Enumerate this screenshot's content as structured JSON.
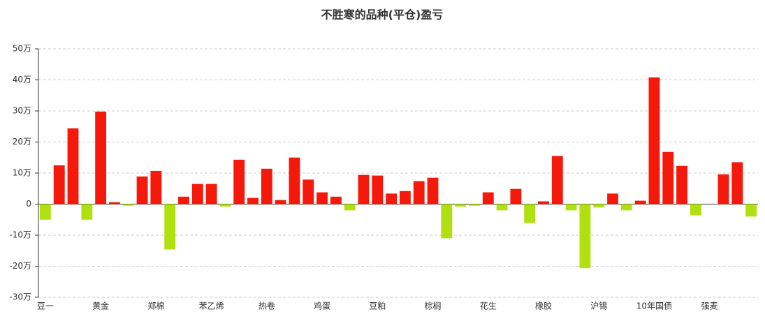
{
  "chart_data": {
    "type": "bar",
    "title": "不胜寒的品种(平仓)盈亏",
    "categories": [
      "豆一",
      null,
      null,
      null,
      "黄金",
      null,
      null,
      null,
      "郑棉",
      null,
      null,
      null,
      "苯乙烯",
      null,
      null,
      null,
      "热卷",
      null,
      null,
      null,
      "鸡蛋",
      null,
      null,
      null,
      "豆粕",
      null,
      null,
      null,
      "棕榈",
      null,
      null,
      null,
      "花生",
      null,
      null,
      null,
      "橡胶",
      null,
      null,
      null,
      "沪锡",
      null,
      null,
      null,
      "10年国债",
      null,
      null,
      null,
      "强麦",
      null,
      null,
      null
    ],
    "values": [
      -5.0,
      12.5,
      24.4,
      -5.0,
      29.8,
      0.6,
      -0.5,
      8.9,
      10.7,
      -14.6,
      2.4,
      6.5,
      6.5,
      -0.8,
      14.3,
      2.0,
      11.4,
      1.3,
      15.0,
      7.9,
      3.8,
      2.4,
      -2.0,
      9.4,
      9.2,
      3.4,
      4.2,
      7.4,
      8.5,
      -11.0,
      -0.8,
      -0.5,
      3.8,
      -2.0,
      4.9,
      -6.1,
      0.9,
      15.5,
      -2.0,
      -20.6,
      -1.1,
      3.4,
      -2.0,
      1.1,
      40.8,
      16.8,
      12.3,
      -3.6,
      0,
      9.6,
      13.5,
      -4.0
    ],
    "positive_color": "#f5190b",
    "negative_color": "#b0e010",
    "ylim": [
      -30,
      50
    ],
    "yticks": [
      {
        "value": -30,
        "label": "-30万"
      },
      {
        "value": -20,
        "label": "-20万"
      },
      {
        "value": -10,
        "label": "-10万"
      },
      {
        "value": 0,
        "label": "0"
      },
      {
        "value": 10,
        "label": "10万"
      },
      {
        "value": 20,
        "label": "20万"
      },
      {
        "value": 30,
        "label": "30万"
      },
      {
        "value": 40,
        "label": "40万"
      },
      {
        "value": 50,
        "label": "50万"
      }
    ],
    "grid": true
  }
}
